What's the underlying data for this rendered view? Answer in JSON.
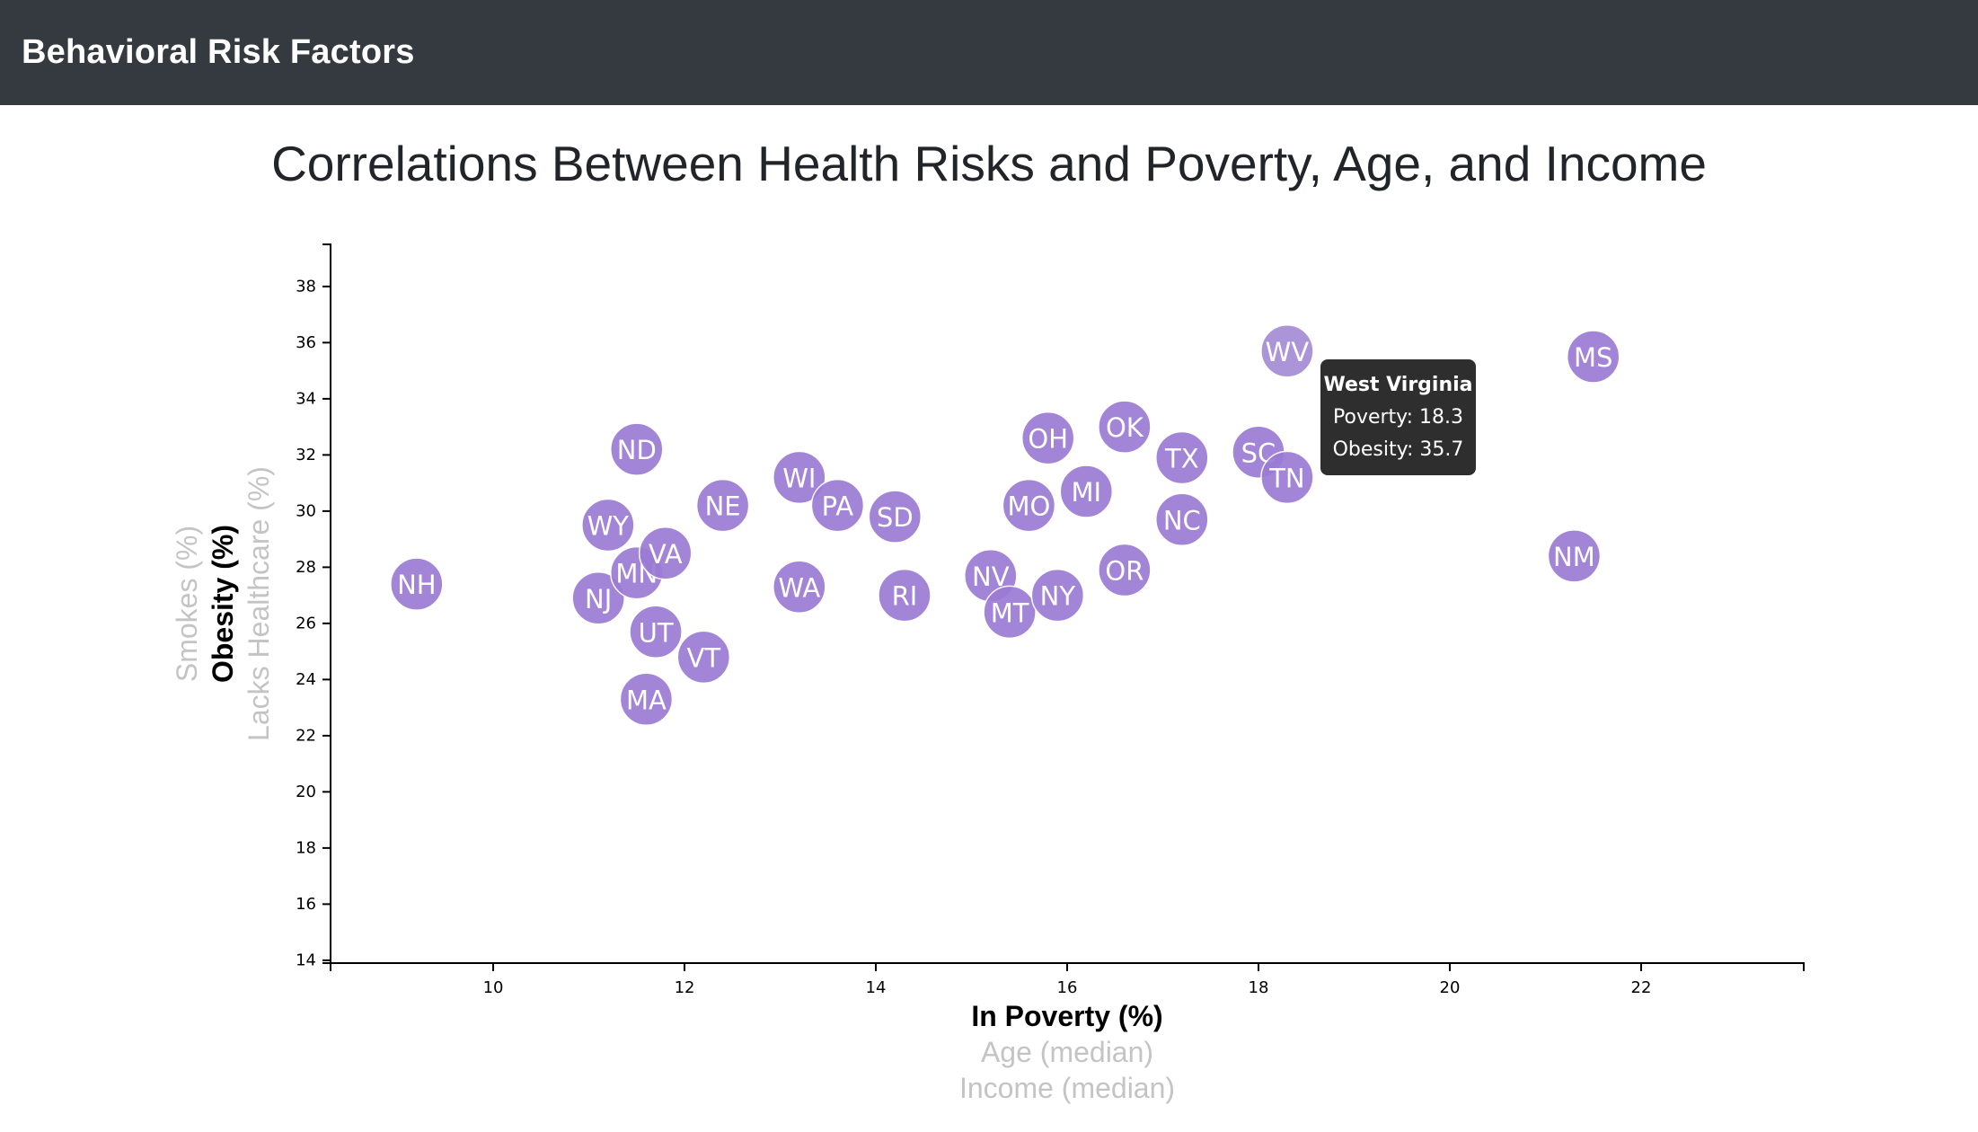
{
  "navbar": {
    "brand": "Behavioral Risk Factors"
  },
  "page_title": "Correlations Between Health Risks and Poverty, Age, and Income",
  "colors": {
    "navbar_bg": "#343a40",
    "circle_fill": "#9b7bd4",
    "active_axis": "#000000",
    "inactive_axis": "#c4c4c4",
    "tooltip_bg": "#2e2e2e"
  },
  "tooltip": {
    "state": "West Virginia",
    "line1": "Poverty: 18.3",
    "line2": "Obesity: 35.7"
  },
  "chart_data": {
    "type": "scatter",
    "title": "",
    "xlabel": "In Poverty (%)",
    "ylabel": "Obesity (%)",
    "x_axis_options": [
      {
        "label": "In Poverty (%)",
        "active": true
      },
      {
        "label": "Age (median)",
        "active": false
      },
      {
        "label": "Income (median)",
        "active": false
      }
    ],
    "y_axis_options": [
      {
        "label": "Obesity (%)",
        "active": true
      },
      {
        "label": "Smokes (%)",
        "active": false
      },
      {
        "label": "Lacks Healthcare (%)",
        "active": false
      }
    ],
    "xlim": [
      8.3,
      23.7
    ],
    "ylim": [
      13.9,
      39.5
    ],
    "x_ticks": [
      10,
      12,
      14,
      16,
      18,
      20,
      22
    ],
    "y_ticks": [
      14,
      16,
      18,
      20,
      22,
      24,
      26,
      28,
      30,
      32,
      34,
      36,
      38
    ],
    "grid": false,
    "highlighted": "WV",
    "points": [
      {
        "abbr": "NH",
        "x": 9.2,
        "y": 27.4
      },
      {
        "abbr": "NJ",
        "x": 11.1,
        "y": 26.9
      },
      {
        "abbr": "MN",
        "x": 11.5,
        "y": 27.8
      },
      {
        "abbr": "WY",
        "x": 11.2,
        "y": 29.5
      },
      {
        "abbr": "ND",
        "x": 11.5,
        "y": 32.2
      },
      {
        "abbr": "VA",
        "x": 11.8,
        "y": 28.5
      },
      {
        "abbr": "UT",
        "x": 11.7,
        "y": 25.7
      },
      {
        "abbr": "MA",
        "x": 11.6,
        "y": 23.3
      },
      {
        "abbr": "VT",
        "x": 12.2,
        "y": 24.8
      },
      {
        "abbr": "NE",
        "x": 12.4,
        "y": 30.2
      },
      {
        "abbr": "WI",
        "x": 13.2,
        "y": 31.2
      },
      {
        "abbr": "PA",
        "x": 13.6,
        "y": 30.2
      },
      {
        "abbr": "WA",
        "x": 13.2,
        "y": 27.3
      },
      {
        "abbr": "SD",
        "x": 14.2,
        "y": 29.8
      },
      {
        "abbr": "RI",
        "x": 14.3,
        "y": 27.0
      },
      {
        "abbr": "NV",
        "x": 15.2,
        "y": 27.7
      },
      {
        "abbr": "MT",
        "x": 15.4,
        "y": 26.4
      },
      {
        "abbr": "MO",
        "x": 15.6,
        "y": 30.2
      },
      {
        "abbr": "OH",
        "x": 15.8,
        "y": 32.6
      },
      {
        "abbr": "NY",
        "x": 15.9,
        "y": 27.0
      },
      {
        "abbr": "MI",
        "x": 16.2,
        "y": 30.7
      },
      {
        "abbr": "OK",
        "x": 16.6,
        "y": 33.0
      },
      {
        "abbr": "OR",
        "x": 16.6,
        "y": 27.9
      },
      {
        "abbr": "TX",
        "x": 17.2,
        "y": 31.9
      },
      {
        "abbr": "NC",
        "x": 17.2,
        "y": 29.7
      },
      {
        "abbr": "SC",
        "x": 18.0,
        "y": 32.1
      },
      {
        "abbr": "TN",
        "x": 18.3,
        "y": 31.2
      },
      {
        "abbr": "WV",
        "x": 18.3,
        "y": 35.7
      },
      {
        "abbr": "NM",
        "x": 21.3,
        "y": 28.4
      },
      {
        "abbr": "MS",
        "x": 21.5,
        "y": 35.5
      }
    ]
  }
}
